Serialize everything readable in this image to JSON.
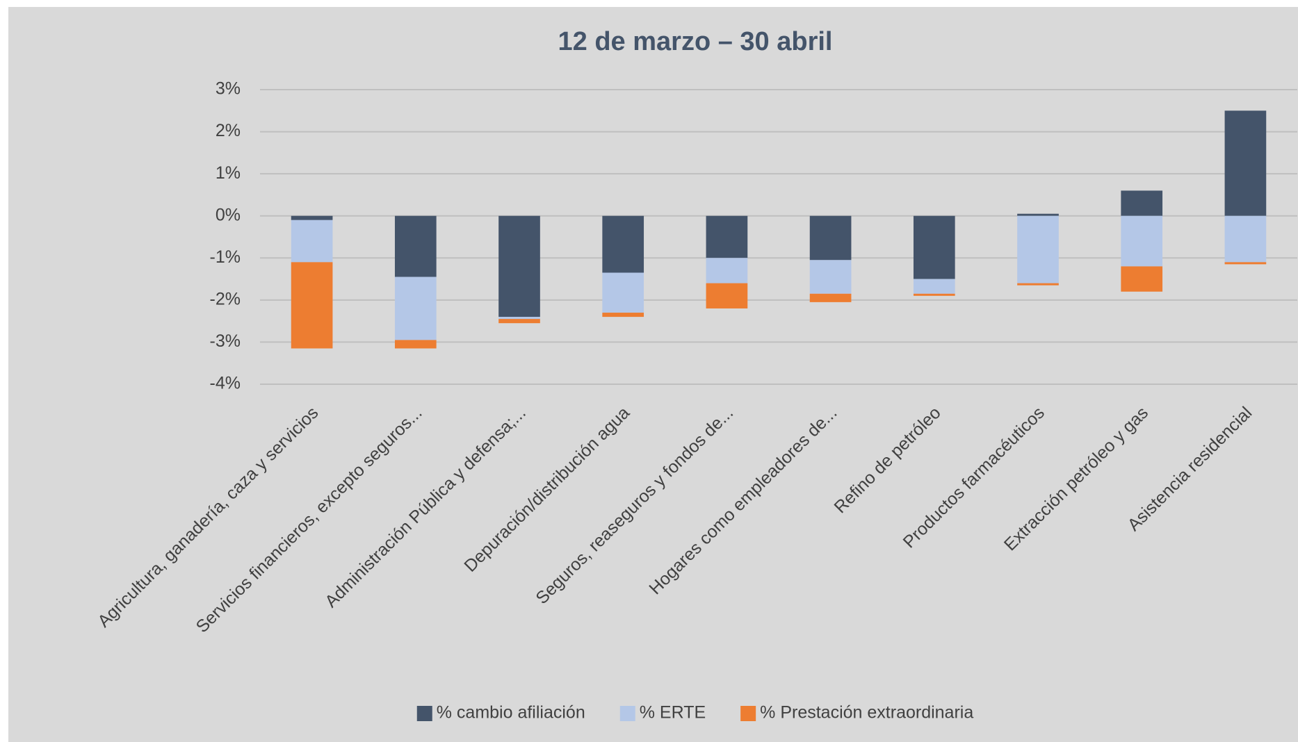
{
  "chart_data": {
    "type": "stacked_bar",
    "title": "12 de marzo – 30 abril",
    "categories": [
      "Agricultura, ganadería, caza y servicios",
      "Servicios financieros, excepto seguros...",
      "Administración Pública y defensa;...",
      "Depuración/distribución agua",
      "Seguros, reaseguros y fondos de...",
      "Hogares como empleadores de...",
      "Refino de petróleo",
      "Productos farmacéuticos",
      "Extracción petróleo y gas",
      "Asistencia residencial"
    ],
    "series": [
      {
        "name": "% cambio afiliación",
        "color": "#44546a",
        "values": [
          -0.1,
          -1.45,
          -2.4,
          -1.35,
          -1.0,
          -1.05,
          -1.5,
          0.05,
          0.6,
          2.5
        ]
      },
      {
        "name": "% ERTE",
        "color": "#b4c7e7",
        "values": [
          -1.0,
          -1.5,
          -0.05,
          -0.95,
          -0.6,
          -0.8,
          -0.35,
          -1.6,
          -1.2,
          -1.1
        ]
      },
      {
        "name": "% Prestación extraordinaria",
        "color": "#ed7d31",
        "values": [
          -2.05,
          -0.2,
          -0.1,
          -0.1,
          -0.6,
          -0.2,
          -0.05,
          -0.05,
          -0.6,
          -0.05
        ]
      }
    ],
    "ylim": [
      -4,
      3
    ],
    "yticks": [
      {
        "value": -4,
        "label": "-4%"
      },
      {
        "value": -3,
        "label": "-3%"
      },
      {
        "value": -2,
        "label": "-2%"
      },
      {
        "value": -1,
        "label": "-1%"
      },
      {
        "value": 0,
        "label": "0%"
      },
      {
        "value": 1,
        "label": "1%"
      },
      {
        "value": 2,
        "label": "2%"
      },
      {
        "value": 3,
        "label": "3%"
      }
    ],
    "grid": true,
    "legend": "bottom"
  }
}
